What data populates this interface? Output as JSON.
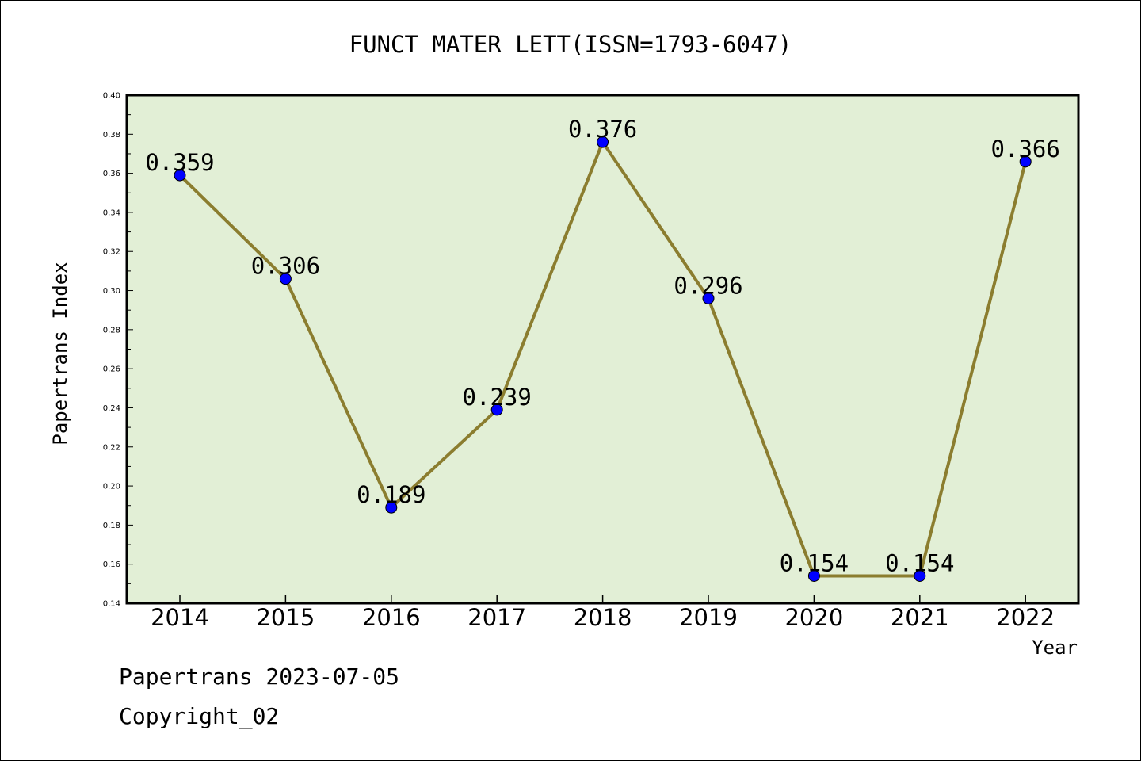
{
  "chart_data": {
    "type": "line",
    "title": "FUNCT MATER LETT(ISSN=1793-6047)",
    "xlabel": "Year",
    "ylabel": "Papertrans Index",
    "categories": [
      "2014",
      "2015",
      "2016",
      "2017",
      "2018",
      "2019",
      "2020",
      "2021",
      "2022"
    ],
    "values": [
      0.359,
      0.306,
      0.189,
      0.239,
      0.376,
      0.296,
      0.154,
      0.154,
      0.366
    ],
    "data_labels": [
      "0.359",
      "0.306",
      "0.189",
      "0.239",
      "0.376",
      "0.296",
      "0.154",
      "0.154",
      "0.366"
    ],
    "ylim": [
      0.14,
      0.4
    ],
    "yticks": [
      "0.14",
      "0.16",
      "0.18",
      "0.20",
      "0.22",
      "0.24",
      "0.26",
      "0.28",
      "0.30",
      "0.32",
      "0.34",
      "0.36",
      "0.38",
      "0.40"
    ],
    "grid": false,
    "colors": {
      "plot_background": "#e2efd6",
      "line": "#8b7d2f",
      "marker": "#0000ff"
    }
  },
  "footer": {
    "line1": "Papertrans 2023-07-05",
    "line2": "Copyright_02"
  }
}
